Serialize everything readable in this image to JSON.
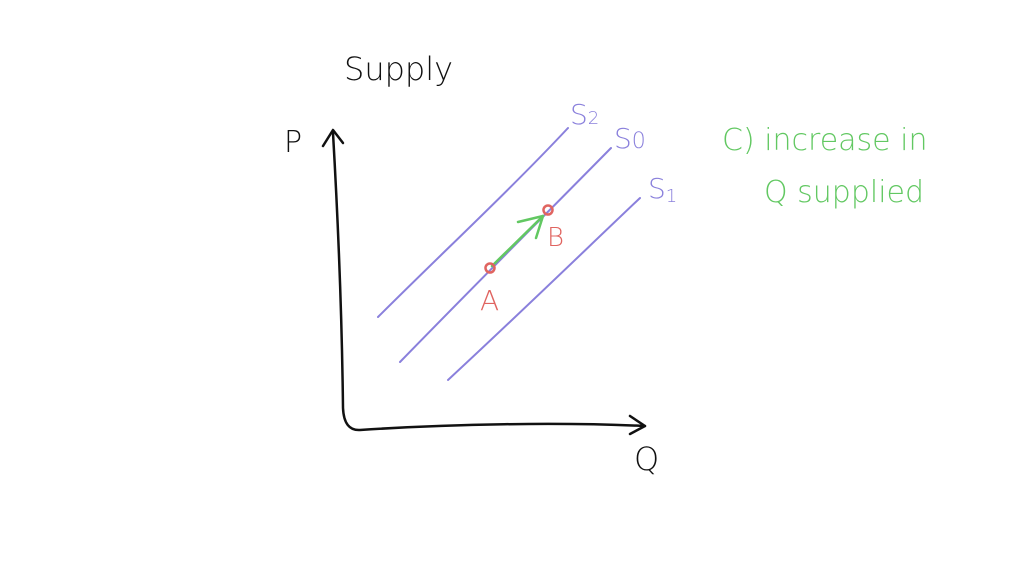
{
  "title": "Supply",
  "axes": {
    "y_label": "P",
    "x_label": "Q"
  },
  "curves": [
    {
      "label_main": "S",
      "label_sub": "2"
    },
    {
      "label_main": "S",
      "label_sub": "0"
    },
    {
      "label_main": "S",
      "label_sub": "1"
    }
  ],
  "points": [
    {
      "label": "A"
    },
    {
      "label": "B"
    }
  ],
  "annotation": {
    "line1": "C) increase in",
    "line2": "Q supplied"
  },
  "colors": {
    "ink": "#111111",
    "curve": "#8a80dc",
    "point": "#e06460",
    "annotation": "#62c862"
  }
}
